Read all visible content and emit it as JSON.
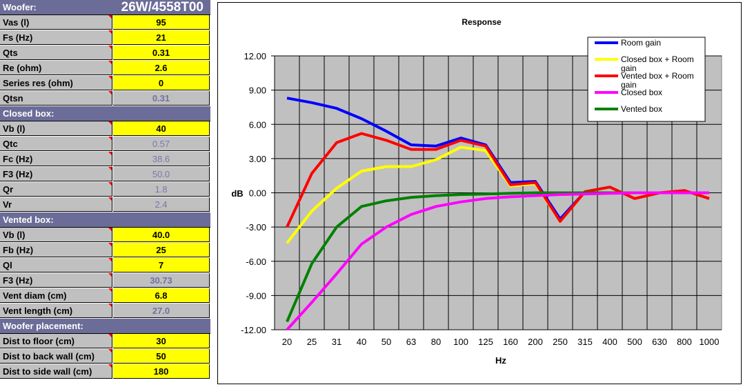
{
  "woofer": {
    "label": "Woofer:",
    "model": "26W/4558T00"
  },
  "params": [
    {
      "label": "Vas (l)",
      "value": "95",
      "kind": "input",
      "tri": true
    },
    {
      "label": "Fs (Hz)",
      "value": "21",
      "kind": "input",
      "tri": true
    },
    {
      "label": "Qts",
      "value": "0.31",
      "kind": "input",
      "tri": true
    },
    {
      "label": "Re (ohm)",
      "value": "2.6",
      "kind": "input",
      "tri": true
    },
    {
      "label": "Series res (ohm)",
      "value": "0",
      "kind": "input",
      "tri": true
    },
    {
      "label": "Qtsn",
      "value": "0.31",
      "kind": "calcb",
      "tri": true
    }
  ],
  "closed_header": "Closed box:",
  "closed": [
    {
      "label": "Vb (l)",
      "value": "40",
      "kind": "input",
      "tri": true
    },
    {
      "label": "Qtc",
      "value": "0.57",
      "kind": "calc",
      "tri": true
    },
    {
      "label": "Fc (Hz)",
      "value": "38.6",
      "kind": "calc",
      "tri": true
    },
    {
      "label": "F3 (Hz)",
      "value": "50.0",
      "kind": "calc",
      "tri": true
    },
    {
      "label": "Qr",
      "value": "1.8",
      "kind": "calc",
      "tri": true
    },
    {
      "label": "Vr",
      "value": "2.4",
      "kind": "calc",
      "tri": true
    }
  ],
  "vented_header": "Vented box:",
  "vented": [
    {
      "label": "Vb (l)",
      "value": "40.0",
      "kind": "input",
      "tri": true
    },
    {
      "label": "Fb (Hz)",
      "value": "25",
      "kind": "input",
      "tri": true
    },
    {
      "label": "Ql",
      "value": "7",
      "kind": "input",
      "tri": true
    },
    {
      "label": "F3 (Hz)",
      "value": "30.73",
      "kind": "calcb",
      "tri": true
    },
    {
      "label": "Vent diam (cm)",
      "value": "6.8",
      "kind": "input",
      "tri": true
    },
    {
      "label": "Vent length (cm)",
      "value": "27.0",
      "kind": "calcb",
      "tri": true
    }
  ],
  "placement_header": "Woofer placement:",
  "placement": [
    {
      "label": "Dist to floor (cm)",
      "value": "30",
      "kind": "input",
      "tri": true
    },
    {
      "label": "Dist to back wall (cm)",
      "value": "50",
      "kind": "input",
      "tri": true
    },
    {
      "label": "Dist to side wall (cm)",
      "value": "180",
      "kind": "input",
      "tri": true
    }
  ],
  "chart_data": {
    "type": "line",
    "title": "Response",
    "xlabel": "Hz",
    "ylabel": "dB",
    "ylim": [
      -12,
      12
    ],
    "yticks": [
      "12.00",
      "9.00",
      "6.00",
      "3.00",
      "0.00",
      "-3.00",
      "-6.00",
      "-9.00",
      "-12.00"
    ],
    "ytick_values": [
      12,
      9,
      6,
      3,
      0,
      -3,
      -6,
      -9,
      -12
    ],
    "categories": [
      "20",
      "25",
      "31",
      "40",
      "50",
      "63",
      "80",
      "100",
      "125",
      "160",
      "200",
      "250",
      "315",
      "400",
      "500",
      "630",
      "800",
      "1000"
    ],
    "grid": true,
    "legend_position": "top-right",
    "plot_background": "#c0c0c0",
    "series": [
      {
        "name": "Room gain",
        "color": "#0000ff",
        "values": [
          8.3,
          7.9,
          7.4,
          6.5,
          5.4,
          4.2,
          4.1,
          4.8,
          4.2,
          0.9,
          1.0,
          -2.3,
          0.1,
          0.5,
          -0.5,
          0.0,
          0.2,
          -0.5
        ]
      },
      {
        "name": "Closed box + Room gain",
        "color": "#ffff00",
        "values": [
          -4.4,
          -1.6,
          0.4,
          1.9,
          2.3,
          2.3,
          2.9,
          4.0,
          3.7,
          0.6,
          0.8,
          -2.5,
          0.1,
          0.5,
          -0.5,
          0.0,
          0.2,
          -0.5
        ]
      },
      {
        "name": "Vented box + Room gain",
        "color": "#ff0000",
        "values": [
          -3.0,
          1.7,
          4.4,
          5.2,
          4.6,
          3.8,
          3.8,
          4.6,
          4.1,
          0.7,
          0.9,
          -2.5,
          0.1,
          0.5,
          -0.5,
          0.0,
          0.2,
          -0.5
        ]
      },
      {
        "name": "Closed box",
        "color": "#ff00ff",
        "values": [
          -12.0,
          -9.6,
          -7.1,
          -4.5,
          -3.0,
          -1.9,
          -1.2,
          -0.8,
          -0.5,
          -0.35,
          -0.25,
          -0.15,
          -0.1,
          -0.05,
          0.0,
          0.0,
          0.0,
          0.0
        ]
      },
      {
        "name": "Vented box",
        "color": "#008000",
        "values": [
          -11.3,
          -6.2,
          -3.0,
          -1.2,
          -0.7,
          -0.4,
          -0.25,
          -0.15,
          -0.1,
          -0.05,
          0.0,
          0.0,
          0.0,
          0.0,
          0.0,
          0.0,
          0.0,
          0.0
        ]
      }
    ]
  }
}
